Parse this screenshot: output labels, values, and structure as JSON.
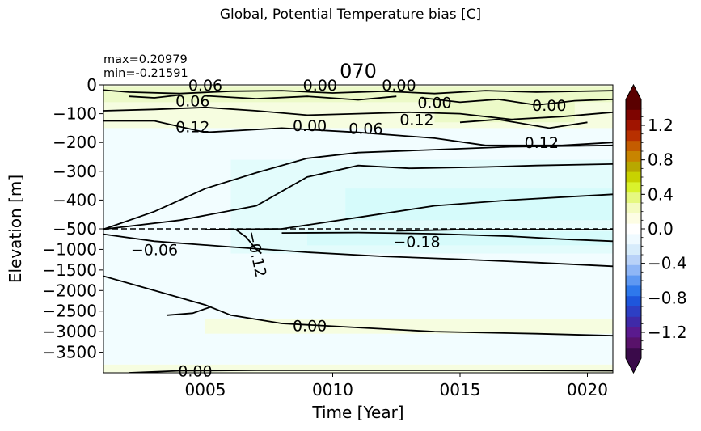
{
  "figure": {
    "suptitle": "Global, Potential Temperature bias [C]",
    "stats_max": "max=0.20979",
    "stats_min": "min=-0.21591"
  },
  "chart_data": {
    "type": "heatmap",
    "title": "070",
    "xlabel": "Time [Year]",
    "ylabel": "Elevation [m]",
    "xlim": [
      1,
      21
    ],
    "x_ticks": [
      5,
      10,
      15,
      20
    ],
    "x_tick_labels": [
      "0005",
      "0010",
      "0015",
      "0020"
    ],
    "y_upper_ticks": [
      0,
      -100,
      -200,
      -300,
      -400,
      -500
    ],
    "y_upper_labels": [
      "0",
      "−100",
      "−200",
      "−300",
      "−400",
      "−500"
    ],
    "y_lower_ticks": [
      -1000,
      -1500,
      -2000,
      -2500,
      -3000,
      -3500
    ],
    "y_lower_labels": [
      "−1000",
      "−1500",
      "−2000",
      "−2500",
      "−3000",
      "−3500"
    ],
    "y_lower_limit": -4000,
    "axis_break_depth": -500,
    "colorbar": {
      "vmin": -1.5,
      "vmax": 1.5,
      "ticks": [
        1.2,
        0.8,
        0.4,
        0.0,
        -0.4,
        -0.8,
        -1.2
      ],
      "tick_labels": [
        "1.2",
        "0.8",
        "0.4",
        "0.0",
        "−0.4",
        "−0.8",
        "−1.2"
      ],
      "extend": "both",
      "colors": [
        "#3a0a4a",
        "#58126a",
        "#5a1a8e",
        "#3f2aa8",
        "#2d3fc4",
        "#1e56dc",
        "#2e78ec",
        "#5e98f2",
        "#8fb6f6",
        "#b9d2f8",
        "#d7ecfb",
        "#effaff",
        "#ffffff",
        "#fdfde4",
        "#f4fbc0",
        "#e6f880",
        "#d9f22c",
        "#c8d200",
        "#b8a800",
        "#c88400",
        "#c45c00",
        "#b83000",
        "#a01400",
        "#7e0400",
        "#5a0000"
      ]
    },
    "field_colors": {
      "slightly_positive": "#f6fde0",
      "positive": "#ecfac8",
      "slightly_negative": "#f2fdff",
      "negative": "#e3fcfc",
      "more_negative": "#d6fbfb"
    },
    "contour_labels": [
      {
        "text": "0.06",
        "x": 5.0,
        "z": 0
      },
      {
        "text": "0.00",
        "x": 9.5,
        "z": 0
      },
      {
        "text": "0.00",
        "x": 12.6,
        "z": 0
      },
      {
        "text": "0.06",
        "x": 4.5,
        "z": -55
      },
      {
        "text": "0.00",
        "x": 14.0,
        "z": -60
      },
      {
        "text": "0.00",
        "x": 18.5,
        "z": -70
      },
      {
        "text": "0.12",
        "x": 4.5,
        "z": -145
      },
      {
        "text": "0.00",
        "x": 9.1,
        "z": -140
      },
      {
        "text": "0.06",
        "x": 11.3,
        "z": -150
      },
      {
        "text": "0.12",
        "x": 13.3,
        "z": -120
      },
      {
        "text": "0.12",
        "x": 18.2,
        "z": -200
      },
      {
        "text": "−0.06",
        "x": 3.0,
        "z": -1000
      },
      {
        "text": "−0.12",
        "x": 6.8,
        "z": -1000
      },
      {
        "text": "−0.18",
        "x": 13.3,
        "z": -800
      },
      {
        "text": "0.00",
        "x": 9.1,
        "z": -2850
      },
      {
        "text": "0.00",
        "x": 4.6,
        "z": -3950
      }
    ]
  }
}
